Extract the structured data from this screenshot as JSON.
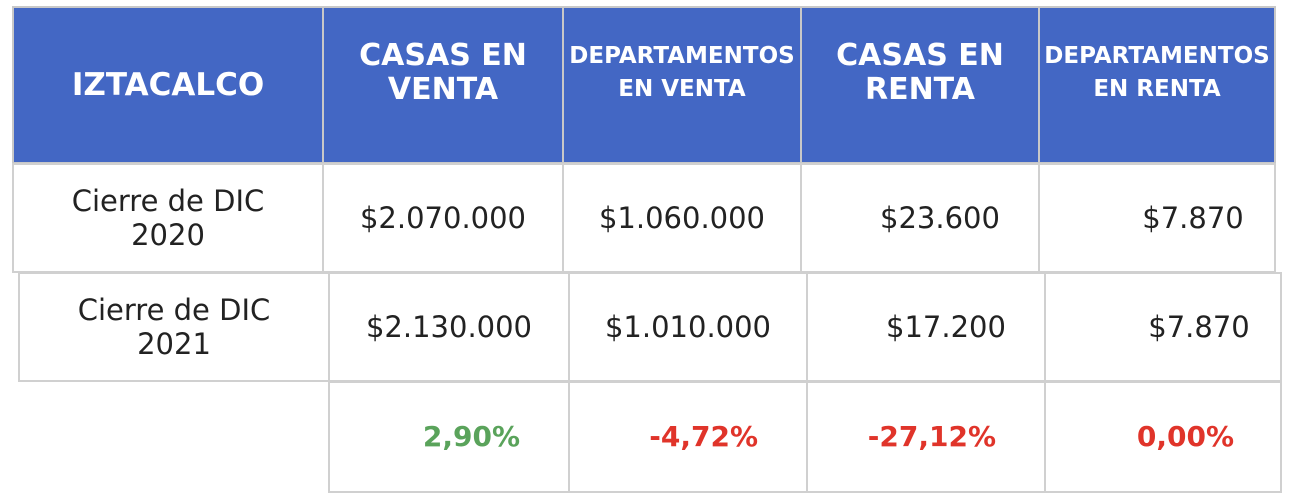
{
  "header": {
    "district": "IZTACALCO",
    "col1": "CASAS EN VENTA",
    "col2": "DEPARTAMENTOS EN VENTA",
    "col3": "CASAS EN RENTA",
    "col4": "DEPARTAMENTOS EN RENTA"
  },
  "rows": [
    {
      "label": "Cierre de DIC 2020",
      "values": [
        "$2.070.000",
        "$1.060.000",
        "$23.600",
        "$7.870"
      ]
    },
    {
      "label": "Cierre de DIC 2021",
      "values": [
        "$2.130.000",
        "$1.010.000",
        "$17.200",
        "$7.870"
      ]
    }
  ],
  "changes": [
    "2,90%",
    "-4,72%",
    "-27,12%",
    "0,00%"
  ],
  "colors": {
    "header_bg": "#4367c4",
    "positive": "#5aa35b",
    "negative": "#e0342a"
  }
}
